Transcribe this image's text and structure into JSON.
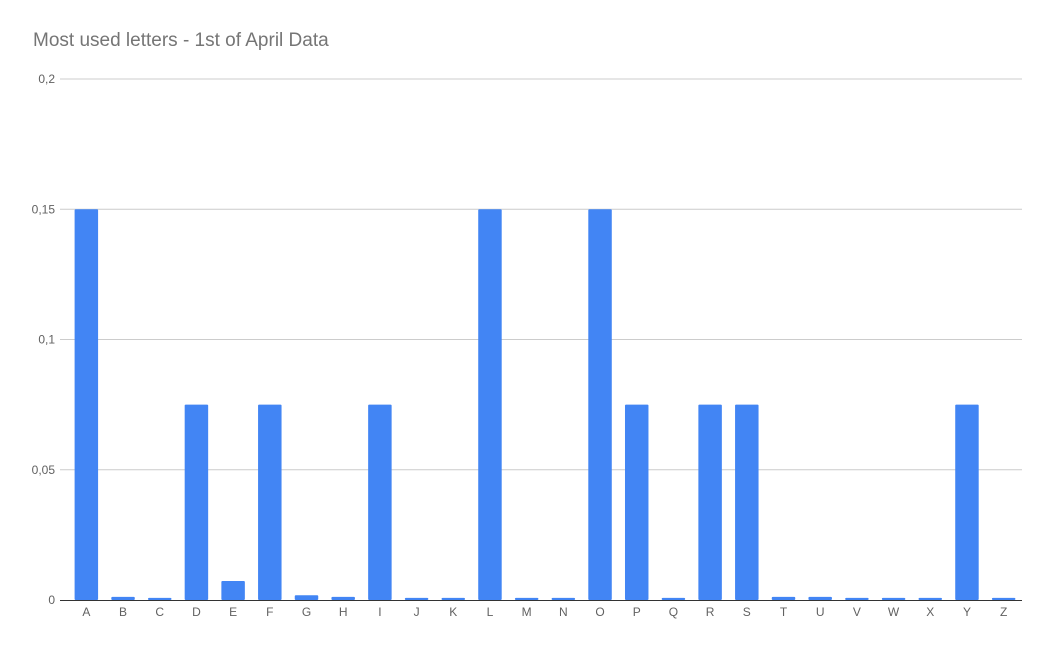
{
  "chart_data": {
    "type": "bar",
    "title": "Most used letters - 1st of April Data",
    "xlabel": "",
    "ylabel": "",
    "categories": [
      "A",
      "B",
      "C",
      "D",
      "E",
      "F",
      "G",
      "H",
      "I",
      "J",
      "K",
      "L",
      "M",
      "N",
      "O",
      "P",
      "Q",
      "R",
      "S",
      "T",
      "U",
      "V",
      "W",
      "X",
      "Y",
      "Z"
    ],
    "values": [
      0.15,
      0.0012,
      0.0008,
      0.075,
      0.0073,
      0.075,
      0.0018,
      0.0012,
      0.075,
      0.0008,
      0.0008,
      0.15,
      0.0008,
      0.0008,
      0.15,
      0.075,
      0.0008,
      0.075,
      0.075,
      0.0012,
      0.0012,
      0.0008,
      0.0008,
      0.0008,
      0.075,
      0.0008
    ],
    "ylim": [
      0,
      0.2
    ],
    "yticks": [
      0,
      0.05,
      0.1,
      0.15,
      0.2
    ],
    "ytick_labels": [
      "0",
      "0,05",
      "0,1",
      "0,15",
      "0,2"
    ],
    "grid": true,
    "legend": "none",
    "bar_color": "#4285f4",
    "grid_color": "#cccccc",
    "baseline_color": "#333333"
  }
}
